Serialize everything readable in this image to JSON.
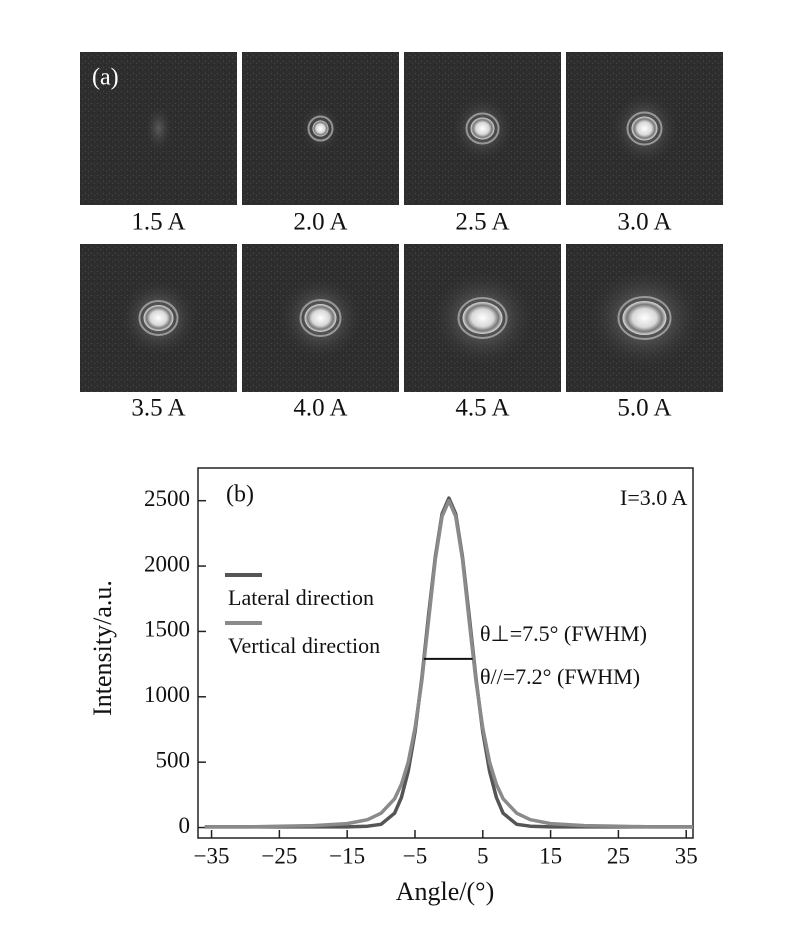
{
  "panel_a": {
    "label": "(a)",
    "images": [
      {
        "caption": "1.5 A"
      },
      {
        "caption": "2.0 A"
      },
      {
        "caption": "2.5 A"
      },
      {
        "caption": "3.0 A"
      },
      {
        "caption": "3.5 A"
      },
      {
        "caption": "4.0 A"
      },
      {
        "caption": "4.5 A"
      },
      {
        "caption": "5.0 A"
      }
    ]
  },
  "chart_data": {
    "type": "line",
    "panel_label": "(b)",
    "annotation": "I=3.0 A",
    "x_label": "Angle/(°)",
    "y_label": "Intensity/a.u.",
    "x": [
      -36,
      -30,
      -25,
      -20,
      -15,
      -12,
      -10,
      -8,
      -7,
      -6,
      -5,
      -4,
      -3,
      -2,
      -1,
      0,
      1,
      2,
      3,
      4,
      5,
      6,
      7,
      8,
      10,
      12,
      15,
      20,
      25,
      30,
      36
    ],
    "series": [
      {
        "name": "Lateral direction",
        "color": "#555555",
        "values": [
          5,
          5,
          5,
          5,
          5,
          10,
          25,
          110,
          230,
          430,
          730,
          1140,
          1620,
          2070,
          2400,
          2520,
          2400,
          2070,
          1620,
          1140,
          730,
          430,
          230,
          110,
          25,
          10,
          5,
          5,
          5,
          5,
          5
        ]
      },
      {
        "name": "Vertical direction",
        "color": "#8a8a8a",
        "values": [
          5,
          5,
          10,
          15,
          30,
          60,
          110,
          220,
          330,
          500,
          760,
          1120,
          1580,
          2050,
          2380,
          2500,
          2380,
          2050,
          1580,
          1120,
          760,
          500,
          330,
          220,
          110,
          60,
          30,
          15,
          10,
          5,
          5
        ]
      }
    ],
    "fwhm_labels": [
      "θ⊥=7.5° (FWHM)",
      "θ//=7.2° (FWHM)"
    ],
    "fwhm_marker": {
      "y": 1290,
      "x1": -3.7,
      "x2": 3.5
    },
    "xlim": [
      -37,
      36
    ],
    "ylim": [
      -80,
      2750
    ],
    "xticks": [
      {
        "value": -35,
        "label": "−35"
      },
      {
        "value": -25,
        "label": "−25"
      },
      {
        "value": -15,
        "label": "−15"
      },
      {
        "value": -5,
        "label": "−5"
      },
      5,
      15,
      25,
      35
    ],
    "yticks": [
      0,
      500,
      1000,
      1500,
      2000,
      2500
    ]
  }
}
